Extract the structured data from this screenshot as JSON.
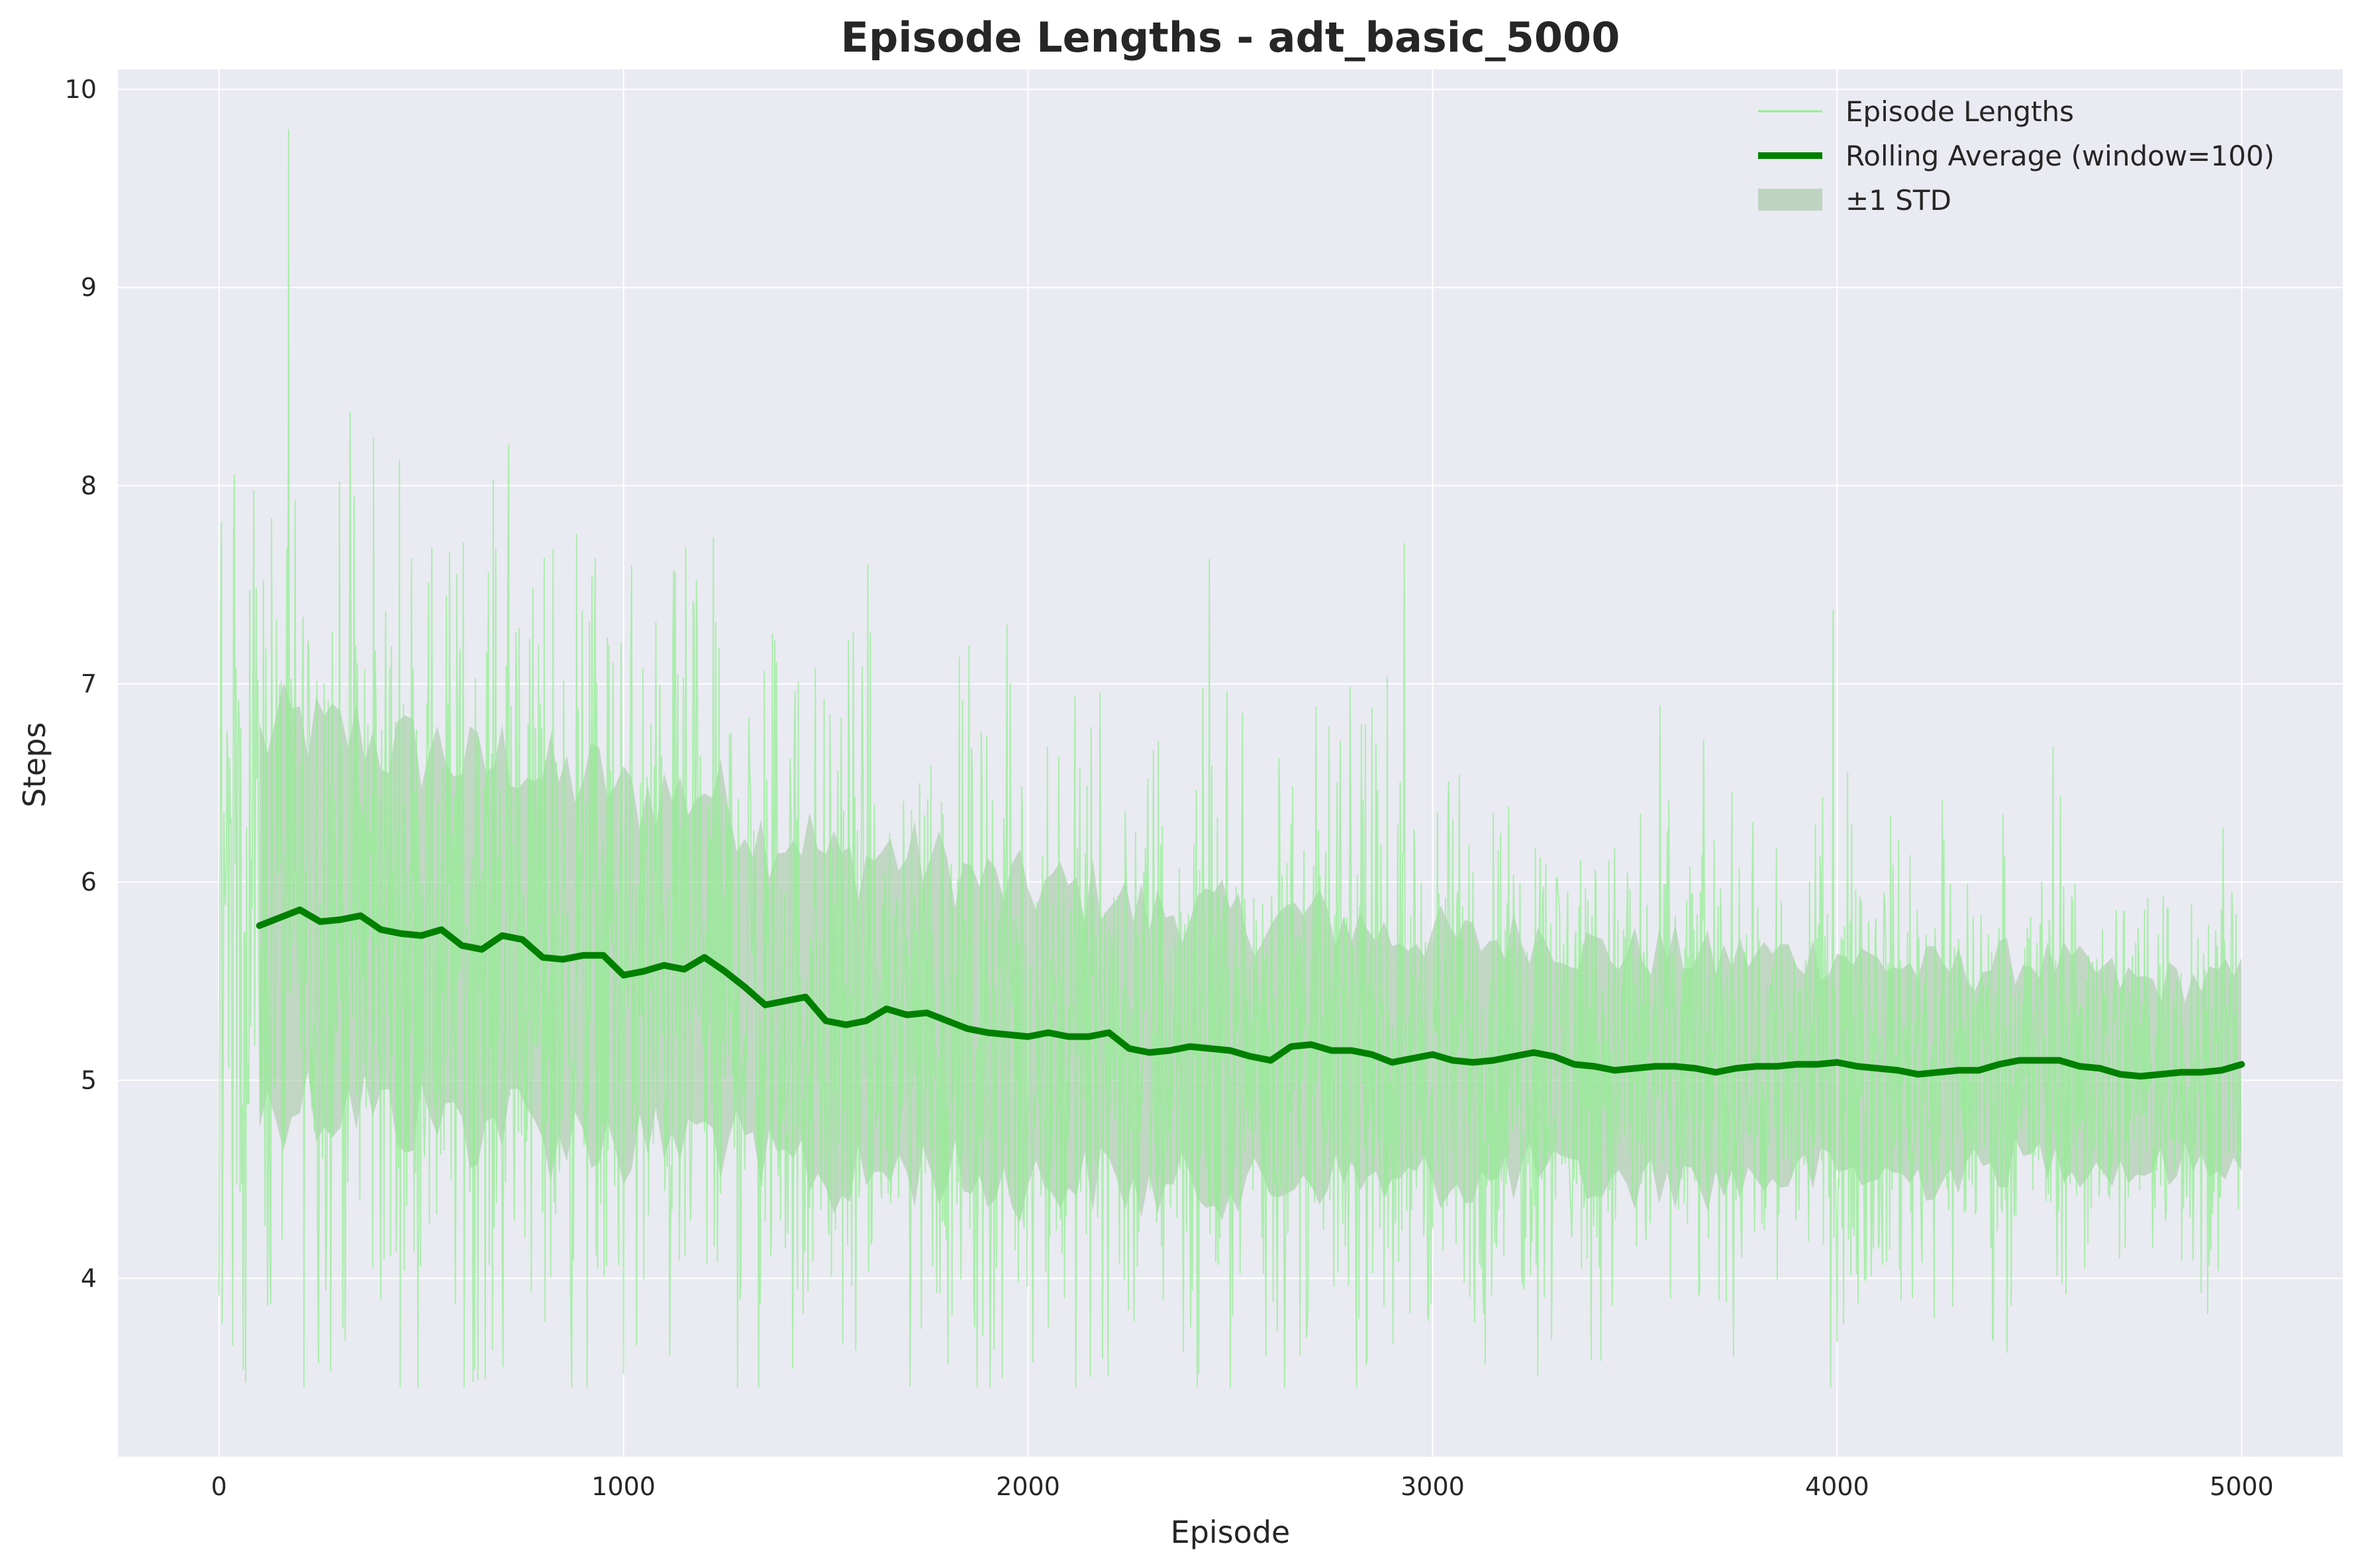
{
  "chart_data": {
    "type": "line",
    "title": "Episode Lengths - adt_basic_5000",
    "xlabel": "Episode",
    "ylabel": "Steps",
    "xlim": [
      -250,
      5250
    ],
    "ylim": [
      3.1,
      10.1
    ],
    "x_ticks": [
      0,
      1000,
      2000,
      3000,
      4000,
      5000
    ],
    "y_ticks": [
      4,
      5,
      6,
      7,
      8,
      9,
      10
    ],
    "grid": true,
    "legend_position": "top-right",
    "colors": {
      "background": "#eaeaf2",
      "raw": "#90ee90",
      "rolling": "#008000",
      "std_band": "#9fc79f"
    },
    "series": [
      {
        "name": "Episode Lengths",
        "kind": "raw",
        "episodes": 5000,
        "approx_range": [
          3.45,
          9.8
        ],
        "note_trend": [
          [
            0,
            5.9
          ],
          [
            500,
            5.75
          ],
          [
            1000,
            5.55
          ],
          [
            1500,
            5.3
          ],
          [
            2000,
            5.22
          ],
          [
            3000,
            5.1
          ],
          [
            4000,
            5.07
          ],
          [
            5000,
            5.07
          ]
        ]
      },
      {
        "name": "Rolling Average (window=100)",
        "kind": "rolling",
        "x": [
          100,
          150,
          200,
          250,
          300,
          350,
          400,
          450,
          500,
          550,
          600,
          650,
          700,
          750,
          800,
          850,
          900,
          950,
          1000,
          1050,
          1100,
          1150,
          1200,
          1250,
          1300,
          1350,
          1400,
          1450,
          1500,
          1550,
          1600,
          1650,
          1700,
          1750,
          1800,
          1850,
          1900,
          1950,
          2000,
          2050,
          2100,
          2150,
          2200,
          2250,
          2300,
          2350,
          2400,
          2450,
          2500,
          2550,
          2600,
          2650,
          2700,
          2750,
          2800,
          2850,
          2900,
          2950,
          3000,
          3050,
          3100,
          3150,
          3200,
          3250,
          3300,
          3350,
          3400,
          3450,
          3500,
          3550,
          3600,
          3650,
          3700,
          3750,
          3800,
          3850,
          3900,
          3950,
          4000,
          4050,
          4100,
          4150,
          4200,
          4250,
          4300,
          4350,
          4400,
          4450,
          4500,
          4550,
          4600,
          4650,
          4700,
          4750,
          4800,
          4850,
          4900,
          4950,
          5000
        ],
        "y": [
          5.78,
          5.82,
          5.86,
          5.8,
          5.81,
          5.83,
          5.76,
          5.74,
          5.73,
          5.76,
          5.68,
          5.66,
          5.73,
          5.71,
          5.62,
          5.61,
          5.63,
          5.63,
          5.53,
          5.55,
          5.58,
          5.56,
          5.62,
          5.55,
          5.47,
          5.38,
          5.4,
          5.42,
          5.3,
          5.28,
          5.3,
          5.36,
          5.33,
          5.34,
          5.3,
          5.26,
          5.24,
          5.23,
          5.22,
          5.24,
          5.22,
          5.22,
          5.24,
          5.16,
          5.14,
          5.15,
          5.17,
          5.16,
          5.15,
          5.12,
          5.1,
          5.17,
          5.18,
          5.15,
          5.15,
          5.13,
          5.09,
          5.11,
          5.13,
          5.1,
          5.09,
          5.1,
          5.12,
          5.14,
          5.12,
          5.08,
          5.07,
          5.05,
          5.06,
          5.07,
          5.07,
          5.06,
          5.04,
          5.06,
          5.07,
          5.07,
          5.08,
          5.08,
          5.09,
          5.07,
          5.06,
          5.05,
          5.03,
          5.04,
          5.05,
          5.05,
          5.08,
          5.1,
          5.1,
          5.1,
          5.07,
          5.06,
          5.03,
          5.02,
          5.03,
          5.04,
          5.04,
          5.05,
          5.08
        ]
      },
      {
        "name": "±1 STD",
        "kind": "band",
        "std_trend": [
          [
            100,
            0.95
          ],
          [
            1000,
            0.9
          ],
          [
            2000,
            0.75
          ],
          [
            3000,
            0.62
          ],
          [
            4000,
            0.55
          ],
          [
            5000,
            0.45
          ]
        ]
      }
    ]
  }
}
